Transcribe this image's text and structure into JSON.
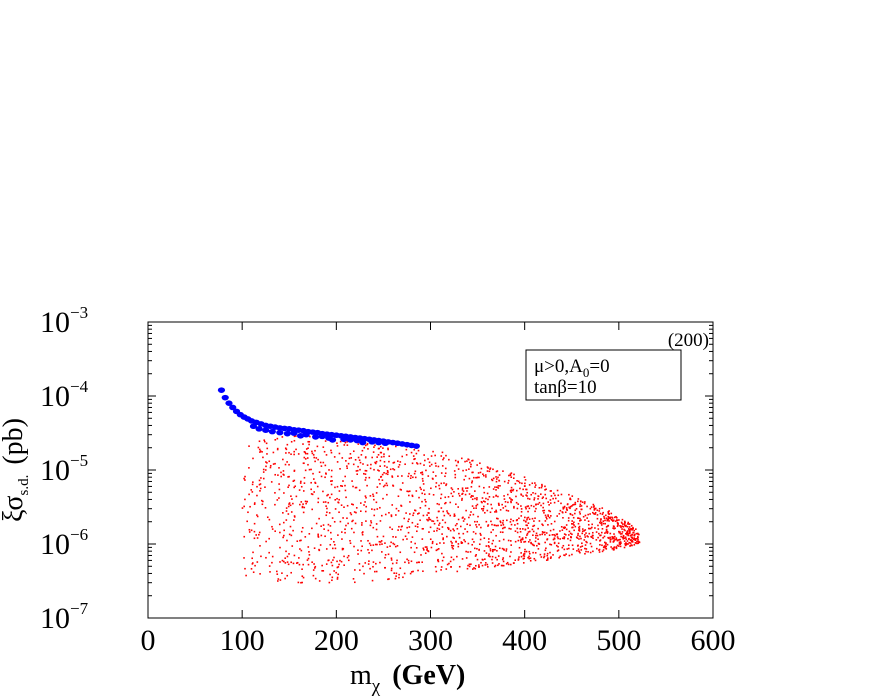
{
  "chart_data": {
    "type": "scatter",
    "title": "",
    "xlabel": {
      "main": "m",
      "sub": "χ",
      "unit": "(GeV)"
    },
    "ylabel": {
      "main": "ξσ",
      "sub": "s.d.",
      "unit": "(pb)"
    },
    "xlim": [
      0,
      600
    ],
    "ylim": [
      1e-07,
      0.001
    ],
    "yscale": "log",
    "grid": false,
    "legend": "none",
    "x_ticks": [
      {
        "value": 0,
        "label": "0"
      },
      {
        "value": 100,
        "label": "100"
      },
      {
        "value": 200,
        "label": "200"
      },
      {
        "value": 300,
        "label": "300"
      },
      {
        "value": 400,
        "label": "400"
      },
      {
        "value": 500,
        "label": "500"
      },
      {
        "value": 600,
        "label": "600"
      }
    ],
    "y_ticks": [
      {
        "value": 0.001,
        "base": "10",
        "exp": "−3"
      },
      {
        "value": 0.0001,
        "base": "10",
        "exp": "−4"
      },
      {
        "value": 1e-05,
        "base": "10",
        "exp": "−5"
      },
      {
        "value": 1e-06,
        "base": "10",
        "exp": "−6"
      },
      {
        "value": 1e-07,
        "base": "10",
        "exp": "−7"
      }
    ],
    "annotations": {
      "corner_label": "(200)",
      "box_line1": {
        "a": "μ>0,A",
        "sub": "0",
        "b": "=0"
      },
      "box_line2": "tanβ=10"
    },
    "series": [
      {
        "color": "#0000ff",
        "marker": "large-dot",
        "points": [
          [
            78,
            0.00012
          ],
          [
            82,
            9.5e-05
          ],
          [
            86,
            8e-05
          ],
          [
            90,
            7e-05
          ],
          [
            94,
            6.2e-05
          ],
          [
            98,
            5.6e-05
          ],
          [
            102,
            5.2e-05
          ],
          [
            106,
            4.9e-05
          ],
          [
            110,
            4.6e-05
          ],
          [
            115,
            4.4e-05
          ],
          [
            120,
            4.2e-05
          ],
          [
            125,
            4e-05
          ],
          [
            130,
            3.9e-05
          ],
          [
            135,
            3.8e-05
          ],
          [
            140,
            3.7e-05
          ],
          [
            145,
            3.65e-05
          ],
          [
            150,
            3.6e-05
          ],
          [
            155,
            3.5e-05
          ],
          [
            160,
            3.45e-05
          ],
          [
            165,
            3.4e-05
          ],
          [
            170,
            3.3e-05
          ],
          [
            175,
            3.25e-05
          ],
          [
            180,
            3.2e-05
          ],
          [
            185,
            3.1e-05
          ],
          [
            190,
            3.05e-05
          ],
          [
            195,
            3e-05
          ],
          [
            200,
            2.95e-05
          ],
          [
            205,
            2.9e-05
          ],
          [
            210,
            2.85e-05
          ],
          [
            215,
            2.8e-05
          ],
          [
            220,
            2.75e-05
          ],
          [
            225,
            2.7e-05
          ],
          [
            230,
            2.65e-05
          ],
          [
            235,
            2.6e-05
          ],
          [
            240,
            2.55e-05
          ],
          [
            245,
            2.5e-05
          ],
          [
            250,
            2.45e-05
          ],
          [
            255,
            2.4e-05
          ],
          [
            260,
            2.35e-05
          ],
          [
            265,
            2.3e-05
          ],
          [
            270,
            2.25e-05
          ],
          [
            275,
            2.2e-05
          ],
          [
            280,
            2.15e-05
          ],
          [
            285,
            2.1e-05
          ],
          [
            118,
            3.6e-05
          ],
          [
            132,
            3.3e-05
          ],
          [
            148,
            3.1e-05
          ],
          [
            162,
            2.9e-05
          ],
          [
            178,
            2.8e-05
          ],
          [
            192,
            2.7e-05
          ],
          [
            208,
            2.6e-05
          ],
          [
            222,
            2.5e-05
          ],
          [
            238,
            2.4e-05
          ],
          [
            252,
            2.3e-05
          ],
          [
            112,
            3.9e-05
          ],
          [
            140,
            3.2e-05
          ],
          [
            168,
            3e-05
          ],
          [
            196,
            2.55e-05
          ],
          [
            228,
            2.35e-05
          ],
          [
            125,
            3.45e-05
          ],
          [
            155,
            3.15e-05
          ],
          [
            185,
            2.85e-05
          ],
          [
            215,
            2.55e-05
          ],
          [
            245,
            2.35e-05
          ]
        ]
      },
      {
        "color": "#ff0000",
        "marker": "small-dot",
        "region": {
          "upper_edge": [
            [
              105,
              3.8e-05
            ],
            [
              150,
              3.3e-05
            ],
            [
              200,
              2.9e-05
            ],
            [
              250,
              2.4e-05
            ],
            [
              290,
              2.1e-05
            ],
            [
              350,
              1.3e-05
            ],
            [
              400,
              8e-06
            ],
            [
              450,
              4.5e-06
            ],
            [
              490,
              2.8e-06
            ],
            [
              515,
              1.8e-06
            ],
            [
              522,
              1.4e-06
            ]
          ],
          "lower_edge": [
            [
              100,
              3.5e-07
            ],
            [
              150,
              3e-07
            ],
            [
              200,
              2.9e-07
            ],
            [
              250,
              3.2e-07
            ],
            [
              300,
              3.8e-07
            ],
            [
              350,
              4.6e-07
            ],
            [
              400,
              5.5e-07
            ],
            [
              450,
              6.7e-07
            ],
            [
              500,
              8.5e-07
            ],
            [
              520,
              1e-06
            ]
          ],
          "count": 2000
        }
      }
    ]
  }
}
